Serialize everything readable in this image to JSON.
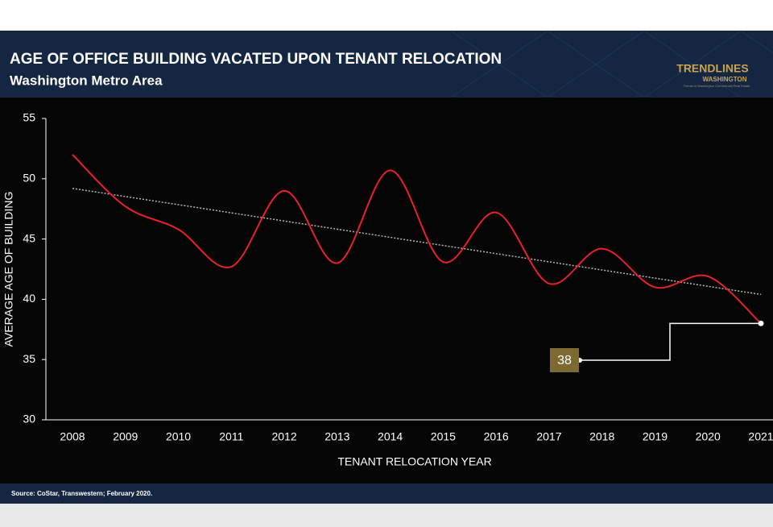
{
  "chart_data": {
    "type": "line",
    "title": "AGE OF OFFICE BUILDING VACATED UPON TENANT RELOCATION",
    "subtitle": "Washington Metro Area",
    "x_label": "TENANT RELOCATION YEAR",
    "y_label": "AVERAGE AGE OF BUILDING",
    "categories": [
      "2008",
      "2009",
      "2010",
      "2011",
      "2012",
      "2013",
      "2014",
      "2015",
      "2016",
      "2017",
      "2018",
      "2019",
      "2020",
      "2021"
    ],
    "values": [
      52,
      47.7,
      45.8,
      42.7,
      49,
      43,
      50.7,
      43.1,
      47.2,
      41.3,
      44.2,
      41,
      41.9,
      38
    ],
    "color": "#e8202a",
    "trendline": {
      "start": 49.2,
      "end": 40.4,
      "color": "#b8b8b8"
    },
    "ylim": [
      30,
      55
    ],
    "yticks": [
      30,
      35,
      40,
      45,
      50,
      55
    ],
    "source": "Source: CoStar, Transwestern; February 2020."
  },
  "logo": {
    "name": "TRENDLINES",
    "sub": "WASHINGTON",
    "tagline": "Trends in Washington Commercial Real Estate"
  }
}
